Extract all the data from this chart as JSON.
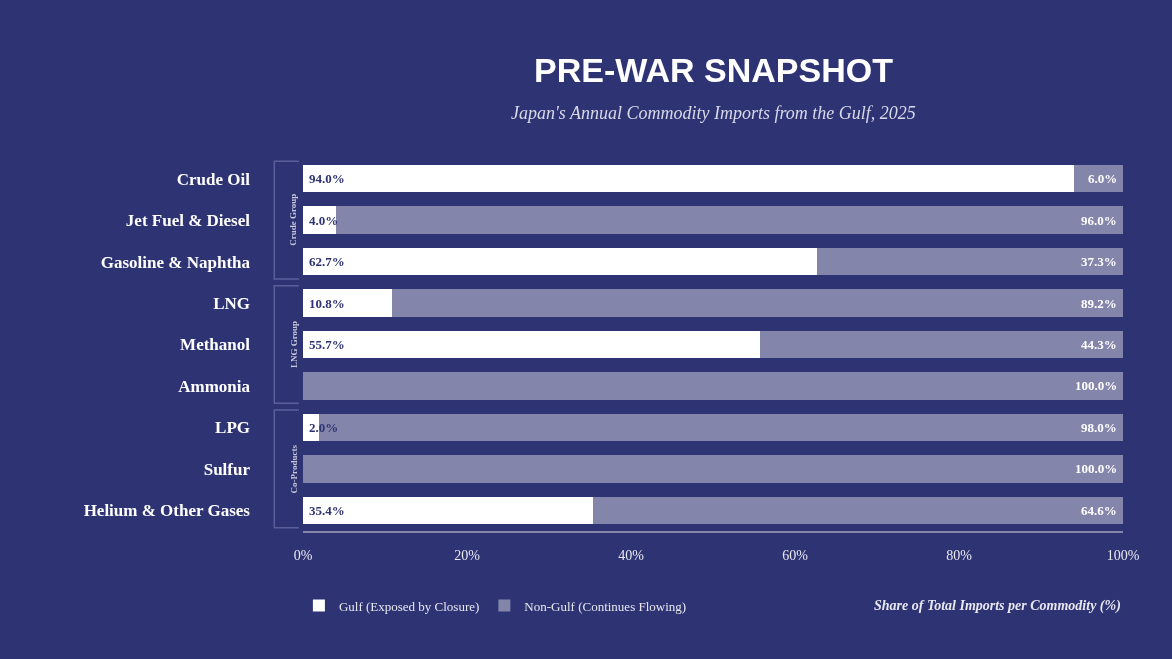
{
  "chart_data": {
    "type": "bar",
    "orientation": "horizontal",
    "stacked": true,
    "title": "PRE-WAR SNAPSHOT",
    "subtitle": "Japan's Annual Commodity Imports from the Gulf, 2025",
    "xlabel": "Share of Total Imports per Commodity (%)",
    "categories": [
      "Crude Oil",
      "Jet Fuel & Diesel",
      "Gasoline & Naphtha",
      "LNG",
      "Methanol",
      "Ammonia",
      "LPG",
      "Sulfur",
      "Helium & Other Gases"
    ],
    "series": [
      {
        "name": "Gulf (Exposed by Closure)",
        "color": "#ffffff",
        "values": [
          94.0,
          4.0,
          62.7,
          10.8,
          55.7,
          0,
          2.0,
          0,
          35.4
        ],
        "value_labels": [
          "94.0%",
          "4.0%",
          "62.7%",
          "10.8%",
          "55.7%",
          null,
          "2.0%",
          null,
          "35.4%"
        ]
      },
      {
        "name": "Non-Gulf (Continues Flowing)",
        "color": "#8385ab",
        "values": [
          6.0,
          96.0,
          37.3,
          89.2,
          44.3,
          100.0,
          98.0,
          100.0,
          64.6
        ],
        "value_labels": [
          "6.0%",
          "96.0%",
          "37.3%",
          "89.2%",
          "44.3%",
          "100.0%",
          "98.0%",
          "100.0%",
          "64.6%"
        ]
      }
    ],
    "xlim": [
      0,
      100
    ],
    "xticks": [
      {
        "value": 0,
        "label": "0%"
      },
      {
        "value": 20,
        "label": "20%"
      },
      {
        "value": 40,
        "label": "40%"
      },
      {
        "value": 60,
        "label": "60%"
      },
      {
        "value": 80,
        "label": "80%"
      },
      {
        "value": 100,
        "label": "100%"
      }
    ],
    "annotations": [
      "Crude Group",
      "LNG Group",
      "Co-Products"
    ],
    "grid": false,
    "legend": "bottom"
  }
}
